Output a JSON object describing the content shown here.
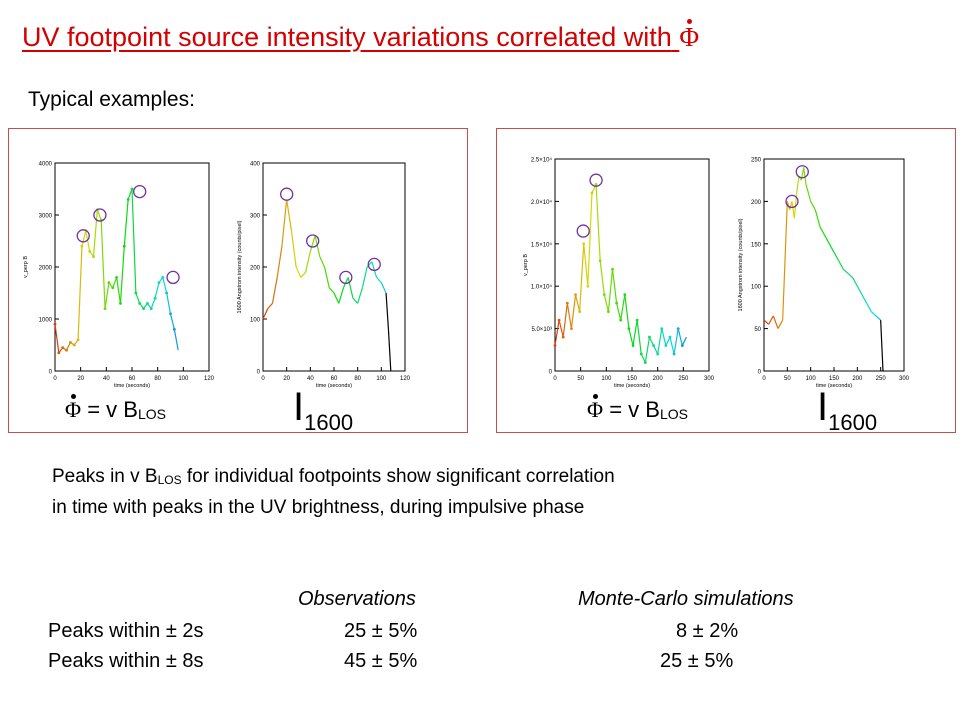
{
  "title": "UV footpoint source intensity variations correlated with",
  "title_symbol": "Φ",
  "subtitle": "Typical examples:",
  "panels": [
    {
      "eq_lhs": "Φ",
      "eq_rest": " = v B",
      "eq_sub": "LOS",
      "i_label": "I",
      "i_sub": "1600",
      "plot_a": {
        "ylabel": "v_perp B",
        "xlabel": "time (seconds)",
        "yticks": [
          "0",
          "1000",
          "2000",
          "3000",
          "4000"
        ],
        "xticks": [
          "0",
          "20",
          "40",
          "60",
          "80",
          "100",
          "120"
        ]
      },
      "plot_b": {
        "ylabel": "1600 Angstrom intensity (counts/pixel)",
        "xlabel": "time (seconds)",
        "yticks": [
          "0",
          "100",
          "200",
          "300",
          "400"
        ],
        "xticks": [
          "0",
          "20",
          "40",
          "60",
          "80",
          "100",
          "120"
        ]
      }
    },
    {
      "eq_lhs": "Φ",
      "eq_rest": " = v B",
      "eq_sub": "LOS",
      "i_label": "I",
      "i_sub": "1600",
      "plot_a": {
        "ylabel": "v_perp B",
        "xlabel": "time (seconds)",
        "yticks": [
          "0",
          "5.0×10³",
          "1.0×10⁴",
          "1.5×10⁴",
          "2.0×10⁴",
          "2.5×10⁴"
        ],
        "xticks": [
          "0",
          "50",
          "100",
          "150",
          "200",
          "250",
          "300"
        ]
      },
      "plot_b": {
        "ylabel": "1600 Angstrom intensity (counts/pixel)",
        "xlabel": "time (seconds)",
        "yticks": [
          "0",
          "50",
          "100",
          "150",
          "200",
          "250"
        ],
        "xticks": [
          "0",
          "50",
          "100",
          "150",
          "200",
          "250",
          "300"
        ]
      }
    }
  ],
  "paragraph": {
    "line1_a": "Peaks in v B",
    "line1_sub": "LOS",
    "line1_b": " for individual footpoints show significant correlation",
    "line2": "in time with peaks in the UV brightness, during impulsive phase"
  },
  "table": {
    "col_obs": "Observations",
    "col_mc": "Monte-Carlo simulations",
    "rows": [
      {
        "label": "Peaks within ± 2s",
        "obs": "25 ± 5%",
        "mc": "8 ± 2%"
      },
      {
        "label": "Peaks within ± 8s",
        "obs": "45 ± 5%",
        "mc": "25 ± 5%"
      }
    ]
  },
  "chart_data": [
    {
      "type": "line",
      "ylim": [
        0,
        4000
      ],
      "xlim": [
        0,
        120
      ],
      "x": [
        0,
        3,
        6,
        9,
        12,
        15,
        18,
        21,
        24,
        27,
        30,
        33,
        36,
        39,
        42,
        45,
        48,
        51,
        54,
        57,
        60,
        63,
        66,
        69,
        72,
        75,
        78,
        81,
        84,
        87,
        90,
        93,
        96
      ],
      "y": [
        900,
        350,
        450,
        400,
        550,
        500,
        600,
        2400,
        2700,
        2300,
        2200,
        3100,
        2900,
        1200,
        1700,
        1600,
        1800,
        1300,
        2400,
        3300,
        3500,
        1500,
        1300,
        1200,
        1300,
        1200,
        1400,
        1700,
        1800,
        1500,
        1100,
        800,
        400
      ],
      "peaks_circled": [
        [
          22,
          2600
        ],
        [
          35,
          3000
        ],
        [
          66,
          3450
        ],
        [
          92,
          1800
        ]
      ]
    },
    {
      "type": "line",
      "ylim": [
        0,
        400
      ],
      "xlim": [
        0,
        120
      ],
      "x": [
        0,
        4,
        8,
        12,
        16,
        20,
        24,
        28,
        32,
        36,
        40,
        44,
        48,
        52,
        56,
        60,
        64,
        68,
        72,
        76,
        80,
        84,
        88,
        92,
        96,
        100,
        104,
        106,
        108
      ],
      "y": [
        100,
        120,
        130,
        180,
        240,
        330,
        270,
        200,
        180,
        190,
        230,
        260,
        220,
        200,
        160,
        150,
        130,
        160,
        180,
        140,
        130,
        160,
        200,
        210,
        180,
        170,
        150,
        80,
        0
      ],
      "peaks_circled": [
        [
          20,
          340
        ],
        [
          42,
          250
        ],
        [
          70,
          180
        ],
        [
          94,
          205
        ]
      ]
    },
    {
      "type": "line",
      "ylim": [
        0,
        25000
      ],
      "xlim": [
        0,
        300
      ],
      "x": [
        0,
        8,
        16,
        24,
        32,
        40,
        48,
        56,
        64,
        72,
        80,
        88,
        96,
        104,
        112,
        120,
        128,
        136,
        144,
        152,
        160,
        168,
        176,
        184,
        192,
        200,
        208,
        216,
        224,
        232,
        240,
        248,
        256
      ],
      "y": [
        3000,
        6000,
        4000,
        8000,
        5000,
        9000,
        7000,
        15000,
        10000,
        21000,
        22000,
        13000,
        9000,
        7000,
        12000,
        8000,
        6000,
        9000,
        5000,
        3000,
        6000,
        2000,
        1000,
        4000,
        3000,
        2000,
        5000,
        3000,
        4000,
        2000,
        5000,
        3000,
        4000
      ],
      "peaks_circled": [
        [
          55,
          16500
        ],
        [
          80,
          22500
        ]
      ]
    },
    {
      "type": "line",
      "ylim": [
        0,
        250
      ],
      "xlim": [
        0,
        300
      ],
      "x": [
        0,
        10,
        20,
        30,
        40,
        50,
        55,
        60,
        65,
        70,
        75,
        80,
        85,
        90,
        100,
        110,
        120,
        130,
        140,
        150,
        160,
        170,
        180,
        190,
        200,
        210,
        220,
        230,
        240,
        250,
        255,
        258
      ],
      "y": [
        60,
        55,
        65,
        50,
        60,
        200,
        190,
        200,
        180,
        210,
        230,
        225,
        240,
        220,
        200,
        190,
        170,
        160,
        150,
        140,
        130,
        120,
        115,
        110,
        100,
        90,
        80,
        70,
        65,
        60,
        0,
        0
      ],
      "peaks_circled": [
        [
          60,
          200
        ],
        [
          82,
          235
        ]
      ]
    }
  ]
}
